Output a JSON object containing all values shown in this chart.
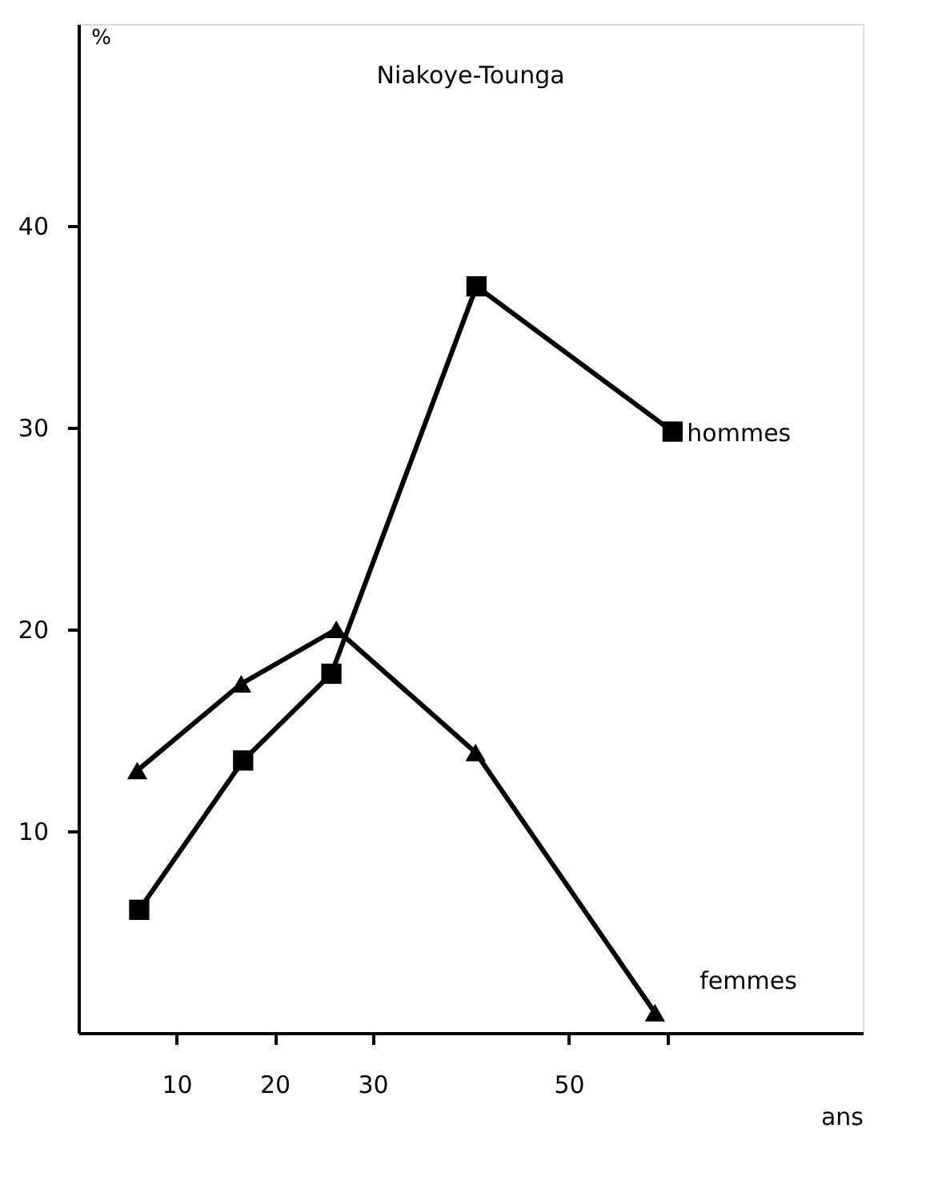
{
  "chart_data": {
    "type": "line",
    "title": "Niakoye-Tounga",
    "xlabel": "ans",
    "ylabel": "%",
    "xlim": [
      0,
      80
    ],
    "ylim": [
      0,
      50
    ],
    "xticks": [
      10,
      20,
      30,
      50,
      {
        "value": 60,
        "label": null
      }
    ],
    "yticks": [
      10,
      20,
      30,
      40
    ],
    "grid": false,
    "line_style": "solid",
    "series": [
      {
        "name": "hommes",
        "color": "#000000",
        "marker": "square",
        "x": [
          6.2,
          16.8,
          25.8,
          40.6,
          60.6
        ],
        "values": [
          6.1,
          13.5,
          17.8,
          37.0,
          29.8
        ]
      },
      {
        "name": "femmes",
        "color": "#000000",
        "marker": "triangle",
        "x": [
          6,
          16.6,
          26.3,
          40.5,
          58.8
        ],
        "values": [
          13.0,
          17.3,
          20.0,
          13.9,
          1.0
        ]
      }
    ]
  }
}
